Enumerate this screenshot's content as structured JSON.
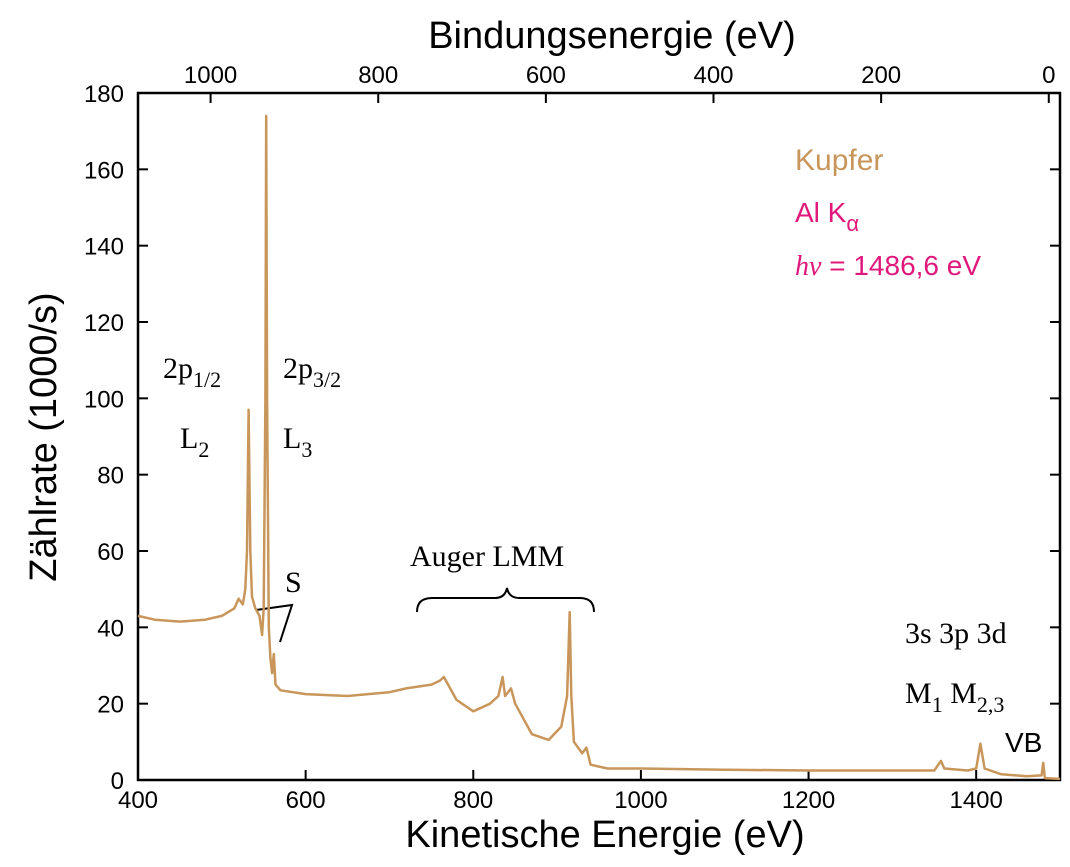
{
  "chart_data": {
    "type": "line",
    "xlabel": "Kinetische Energie (eV)",
    "ylabel": "Zählrate (1000/s)",
    "x2label": "Bindungsenergie (eV)",
    "xlim": [
      400,
      1500
    ],
    "xticks": [
      400,
      600,
      800,
      1000,
      1200,
      1400
    ],
    "ylim": [
      0,
      180
    ],
    "yticks": [
      0,
      20,
      40,
      60,
      80,
      100,
      120,
      140,
      160,
      180
    ],
    "x2lim": [
      1086.6,
      -13.4
    ],
    "x2ticks": [
      1000,
      800,
      600,
      400,
      200,
      0
    ],
    "x": [
      400,
      420,
      450,
      480,
      500,
      515,
      520,
      525,
      528,
      530,
      532,
      534,
      536,
      540,
      545,
      548,
      550,
      552,
      553,
      554,
      556,
      558,
      560,
      562,
      564,
      570,
      600,
      650,
      700,
      720,
      750,
      760,
      765,
      770,
      780,
      800,
      820,
      830,
      835,
      838,
      845,
      850,
      870,
      890,
      905,
      912,
      915,
      917,
      920,
      930,
      935,
      940,
      960,
      1000,
      1100,
      1200,
      1300,
      1350,
      1358,
      1362,
      1390,
      1400,
      1405,
      1410,
      1430,
      1460,
      1478,
      1480,
      1482,
      1500
    ],
    "series": [
      {
        "name": "Kupfer",
        "color": "#c8965a",
        "values": [
          43,
          42,
          41.5,
          42,
          43,
          45,
          47.5,
          46,
          50,
          60,
          97,
          60,
          48,
          45,
          43,
          38,
          45,
          100,
          174,
          100,
          40,
          32,
          28,
          33,
          25,
          23.5,
          22.5,
          22,
          23,
          24,
          25,
          26,
          27,
          25,
          21,
          18,
          20,
          22,
          27,
          22,
          24,
          20,
          12,
          10.5,
          14,
          22,
          44,
          22,
          10,
          7,
          8.5,
          4,
          3,
          3,
          2.7,
          2.5,
          2.5,
          2.5,
          5,
          3,
          2.5,
          3,
          9.5,
          3,
          1.5,
          1,
          1.2,
          4.5,
          0.5,
          0.3
        ]
      }
    ],
    "annotations": [
      {
        "color": "#e0187c",
        "parts": [
          {
            "text": "Al K"
          },
          {
            "text": "α",
            "sub": true
          }
        ]
      },
      {
        "color": "#e0187c",
        "parts": [
          {
            "text": "hν",
            "italic": true
          },
          {
            "text": " = 1486,6 eV"
          }
        ]
      },
      {
        "parts": [
          {
            "text": "2p"
          },
          {
            "text": "1/2",
            "sub": true
          }
        ]
      },
      {
        "parts": [
          {
            "text": "L"
          },
          {
            "text": "2",
            "sub": true
          }
        ]
      },
      {
        "parts": [
          {
            "text": "2p"
          },
          {
            "text": "3/2",
            "sub": true
          }
        ]
      },
      {
        "parts": [
          {
            "text": "L"
          },
          {
            "text": "3",
            "sub": true
          }
        ]
      },
      {
        "parts": [
          {
            "text": "S"
          }
        ]
      },
      {
        "parts": [
          {
            "text": "Auger LMM"
          }
        ]
      },
      {
        "parts": [
          {
            "text": "3s 3p 3d"
          }
        ]
      },
      {
        "parts": [
          {
            "text": "M"
          },
          {
            "text": "1",
            "sub": true
          },
          {
            "text": " M"
          },
          {
            "text": "2,3",
            "sub": true
          }
        ]
      },
      {
        "parts": [
          {
            "text": "VB"
          }
        ]
      }
    ]
  }
}
